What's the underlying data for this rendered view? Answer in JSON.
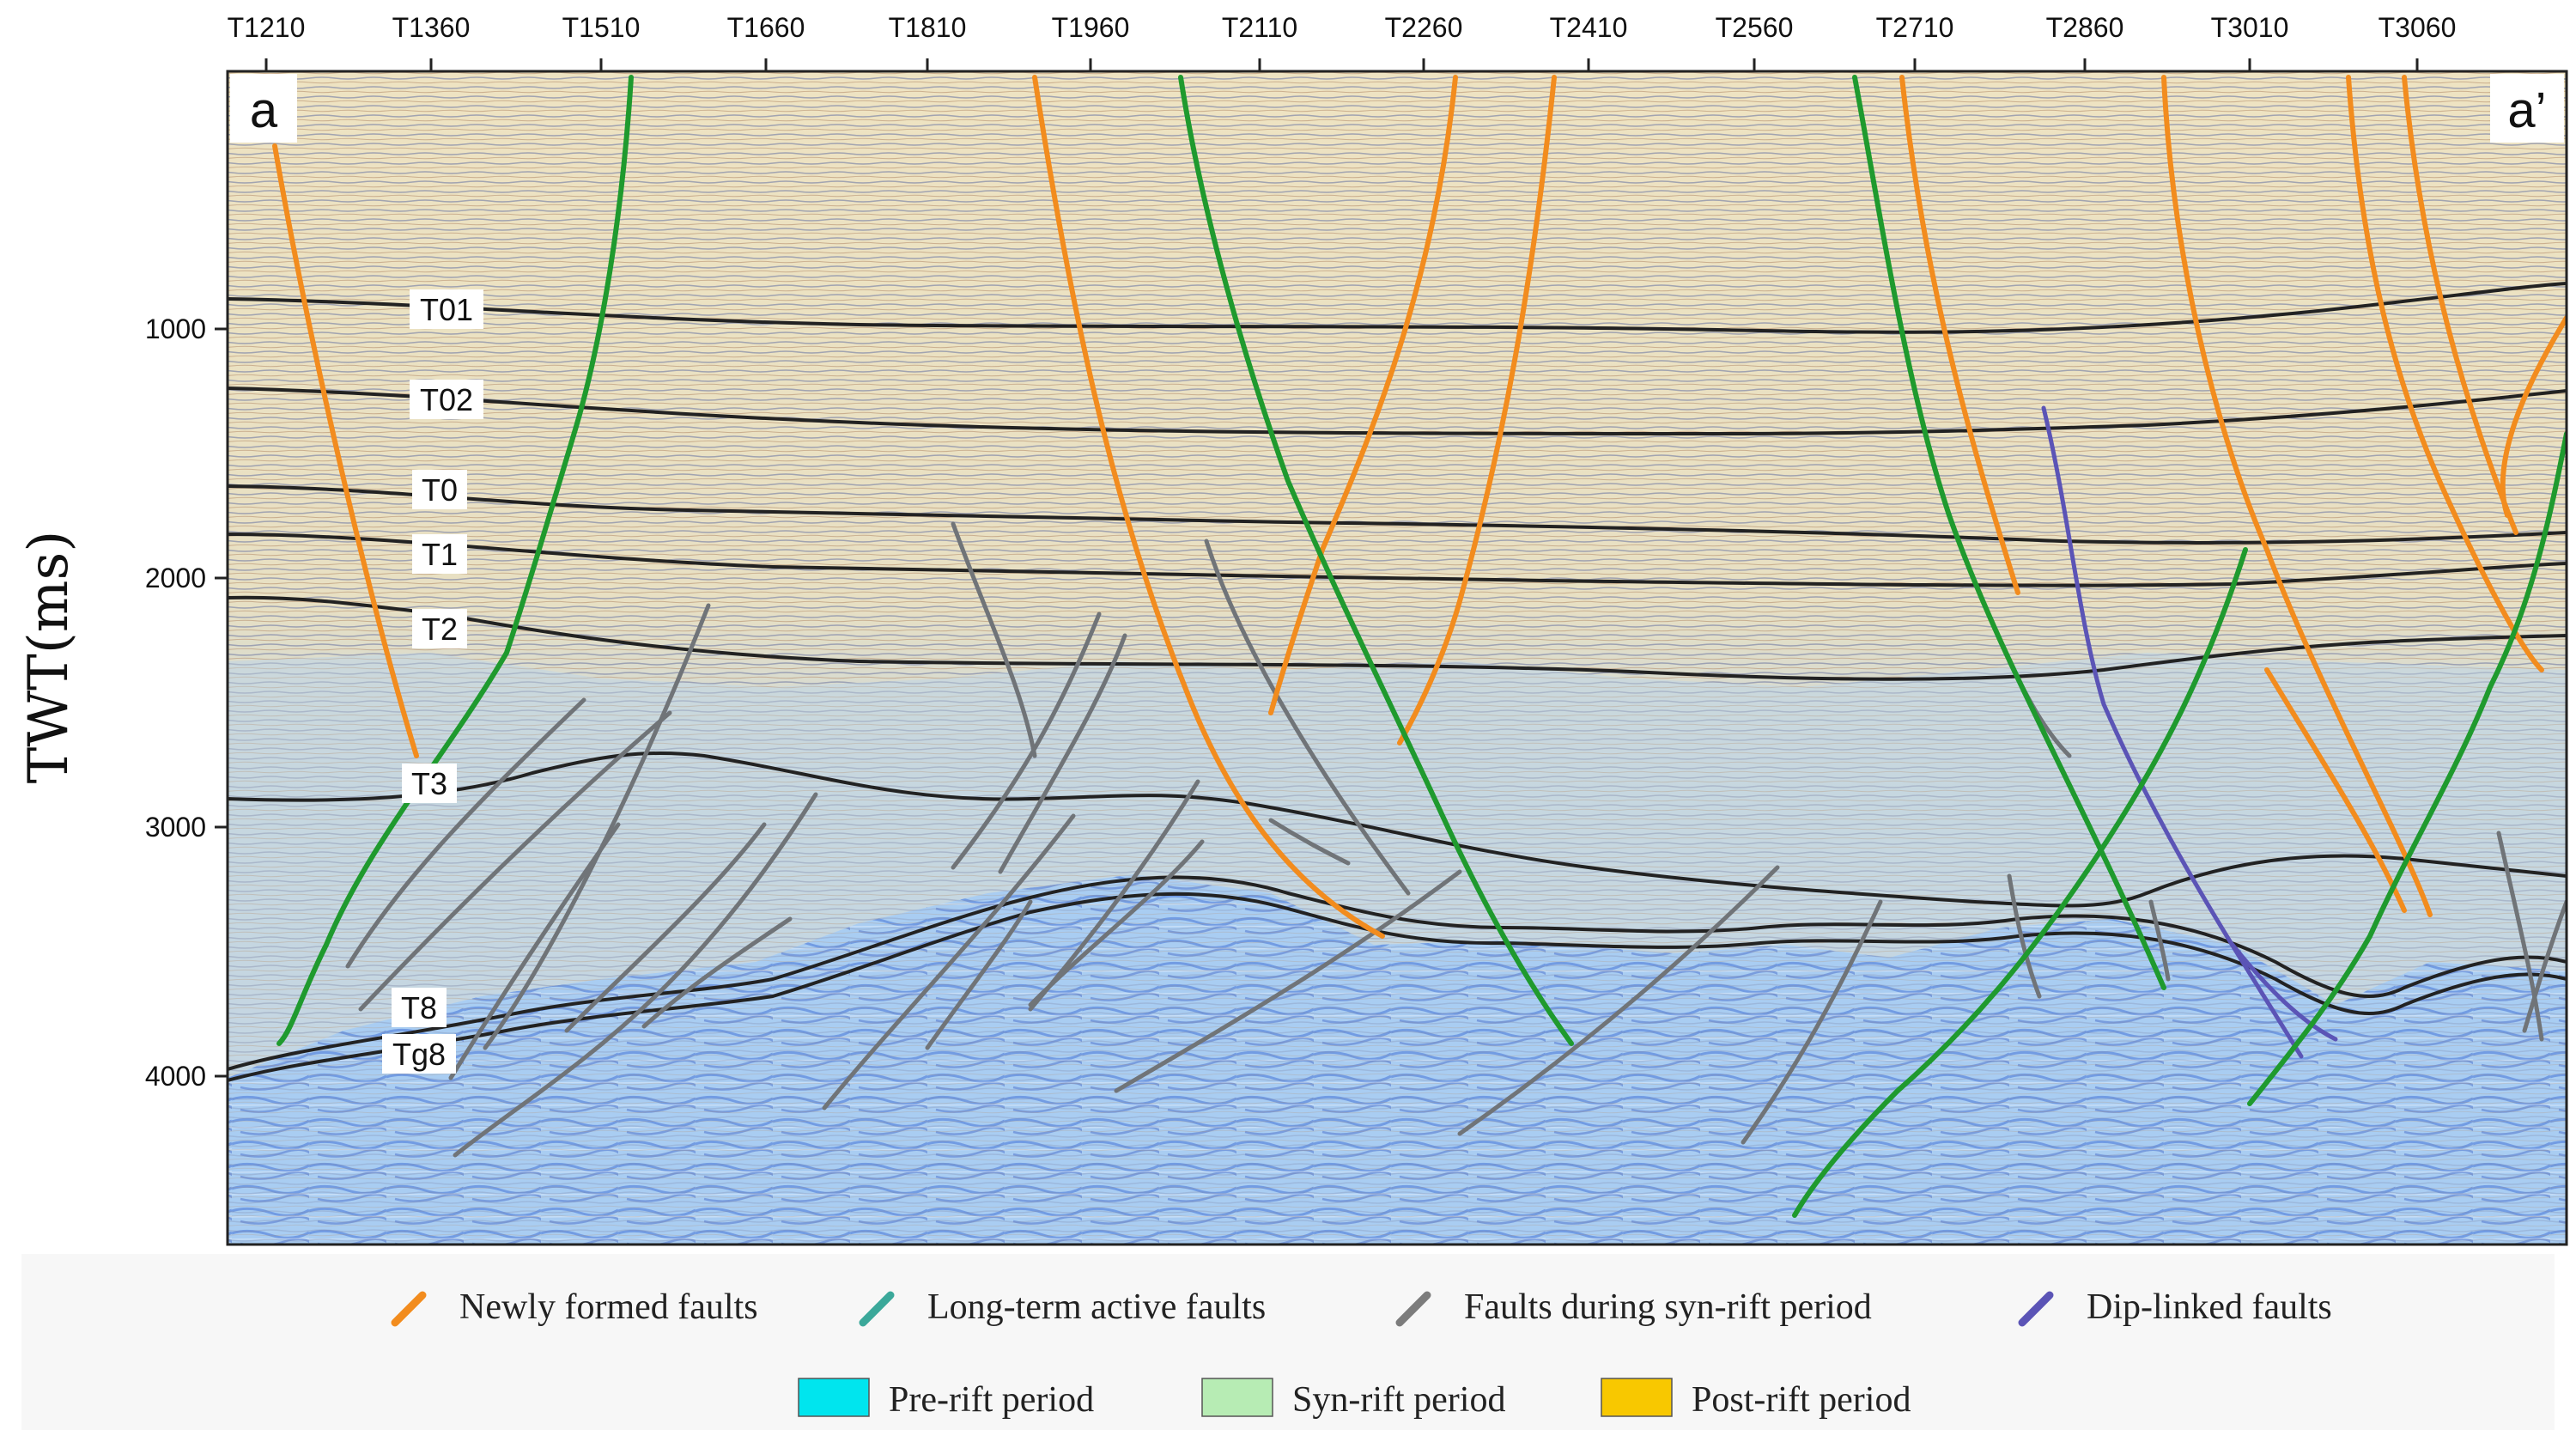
{
  "section": {
    "left_label": "a",
    "right_label": "a’",
    "y_axis_title": "TWT(ms)",
    "trace_labels": [
      "T1210",
      "T1360",
      "T1510",
      "T1660",
      "T1810",
      "T1960",
      "T2110",
      "T2260",
      "T2410",
      "T2560",
      "T2710",
      "T2860",
      "T3010",
      "T3060"
    ],
    "twt_ticks": [
      "1000",
      "2000",
      "3000",
      "4000"
    ],
    "horizons": [
      "T01",
      "T02",
      "T0",
      "T1",
      "T2",
      "T3",
      "T8",
      "Tg8"
    ]
  },
  "legend": {
    "faults": [
      {
        "label": "Newly formed faults",
        "color": "#f28c1e",
        "icon": "orange-fault-stroke-icon"
      },
      {
        "label": "Long-term active faults",
        "color": "#3ba89a",
        "icon": "teal-fault-stroke-icon"
      },
      {
        "label": "Faults during syn-rift period",
        "color": "#7c7c7c",
        "icon": "gray-fault-stroke-icon"
      },
      {
        "label": "Dip-linked faults",
        "color": "#5b54b6",
        "icon": "purple-fault-stroke-icon"
      }
    ],
    "periods": [
      {
        "label": "Pre-rift period",
        "color": "#00e5ee"
      },
      {
        "label": "Syn-rift period",
        "color": "#b7ecb4"
      },
      {
        "label": "Post-rift period",
        "color": "#f8c800"
      }
    ]
  },
  "colors": {
    "newly_formed": "#f28c1e",
    "long_term": "#1f9a2e",
    "syn_rift_fault": "#707478",
    "dip_linked": "#5b54b6",
    "horizon_line": "#222222"
  }
}
